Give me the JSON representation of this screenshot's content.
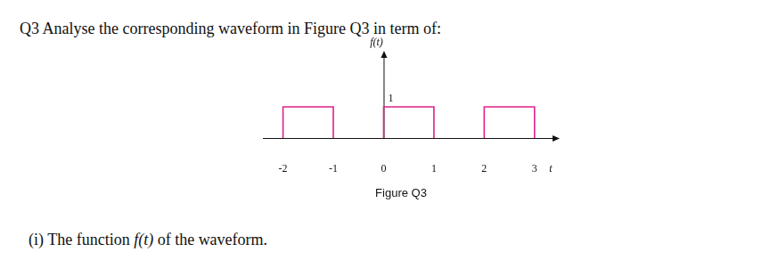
{
  "question": "Q3 Analyse the corresponding waveform in Figure Q3 in term of:",
  "chart_data": {
    "type": "line",
    "x": [
      -2,
      -2,
      -1,
      -1,
      -1,
      0,
      0,
      1,
      1,
      1,
      2,
      2,
      3,
      3
    ],
    "values": [
      0,
      1,
      1,
      0,
      null,
      0,
      1,
      1,
      0,
      null,
      0,
      1,
      1,
      0
    ],
    "color": "#e0218a",
    "xlim": [
      -2.4,
      3.5
    ],
    "ylim": [
      0,
      2.8
    ],
    "xticks": [
      -2,
      -1,
      0,
      1,
      2,
      3
    ],
    "yticks": [
      1
    ],
    "x_label": "t",
    "y_label": "f(t)"
  },
  "figure_caption": "Figure Q3",
  "subquestion": {
    "text": "(i) The function f(t) of the waveform.",
    "italic": "f(t)"
  }
}
